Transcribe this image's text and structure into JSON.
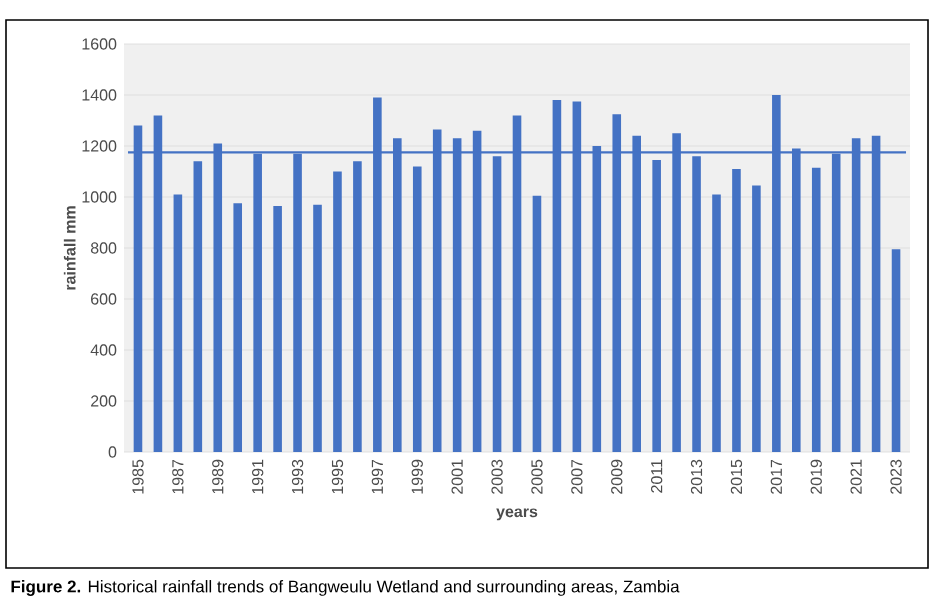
{
  "chart_data": {
    "type": "bar",
    "categories": [
      "1985",
      null,
      "1987",
      null,
      "1989",
      null,
      "1991",
      null,
      "1993",
      null,
      "1995",
      null,
      "1997",
      null,
      "1999",
      null,
      "2001",
      null,
      "2003",
      null,
      "2005",
      null,
      "2007",
      null,
      "2009",
      null,
      "2011",
      null,
      "2013",
      null,
      "2015",
      null,
      "2017",
      null,
      "2019",
      null,
      "2021",
      null,
      "2023"
    ],
    "values": [
      1280,
      1320,
      1010,
      1140,
      1210,
      975,
      1170,
      965,
      1170,
      970,
      1100,
      1140,
      1390,
      1230,
      1120,
      1265,
      1230,
      1260,
      1160,
      1320,
      1005,
      1380,
      1375,
      1200,
      1325,
      1240,
      1145,
      1250,
      1160,
      1010,
      1110,
      1045,
      1400,
      1190,
      1115,
      1170,
      1230,
      1240,
      795
    ],
    "color": "#4472c4",
    "xlabel": "years",
    "ylabel": "rainfall mm",
    "ylim": [
      0,
      1600
    ],
    "yticks": [
      0,
      200,
      400,
      600,
      800,
      1000,
      1200,
      1400,
      1600
    ],
    "grid": "y",
    "ref_lines": [
      {
        "axis": "y",
        "value": 1175,
        "color": "#4472c4"
      }
    ],
    "annotations": [
      "**Figure 2.** Historical rainfall trends of Bangweulu Wetland and surrounding areas, Zambia"
    ]
  }
}
